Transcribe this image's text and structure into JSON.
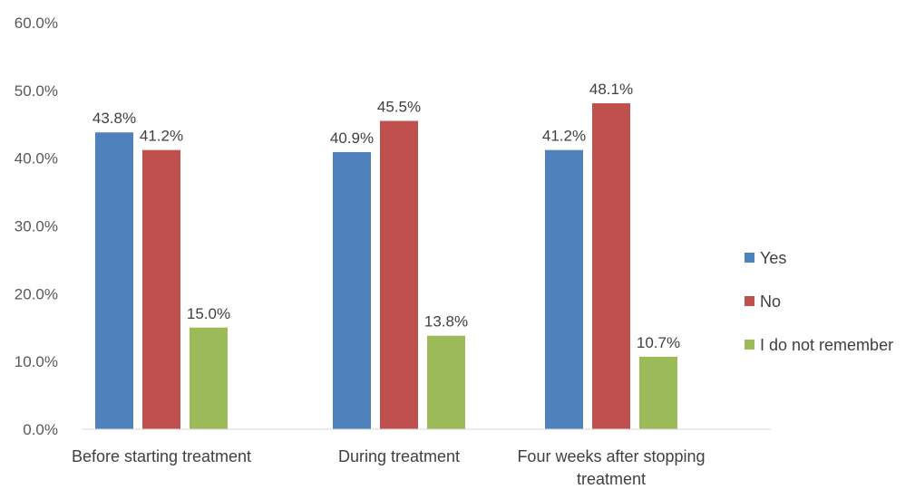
{
  "chart_data": {
    "type": "bar",
    "categories": [
      [
        "Before starting treatment"
      ],
      [
        "During treatment"
      ],
      [
        "Four weeks after stopping",
        "treatment"
      ]
    ],
    "series": [
      {
        "name": "Yes",
        "color": "#4F81BD",
        "values": [
          43.8,
          40.9,
          41.2
        ],
        "labels": [
          "43.8%",
          "40.9%",
          "41.2%"
        ]
      },
      {
        "name": "No",
        "color": "#C0504D",
        "values": [
          41.2,
          45.5,
          48.1
        ],
        "labels": [
          "41.2%",
          "45.5%",
          "48.1%"
        ]
      },
      {
        "name": "I do not remember",
        "color": "#9BBB59",
        "values": [
          15.0,
          13.8,
          10.7
        ],
        "labels": [
          "15.0%",
          "13.8%",
          "10.7%"
        ]
      }
    ],
    "ylim": [
      0,
      60
    ],
    "yticks": [
      0,
      10,
      20,
      30,
      40,
      50,
      60
    ],
    "yticklabels": [
      "0.0%",
      "10.0%",
      "20.0%",
      "30.0%",
      "40.0%",
      "50.0%",
      "60.0%"
    ],
    "grid": false,
    "legend": "right"
  }
}
